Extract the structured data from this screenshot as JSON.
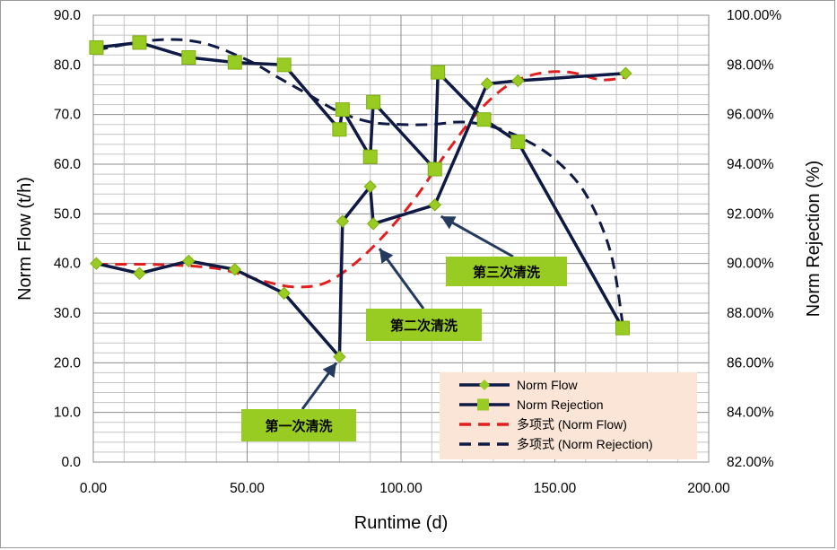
{
  "chart_data": {
    "type": "line",
    "title": "",
    "xlabel": "Runtime (d)",
    "ylabel_left": "Norm Flow (t/h)",
    "ylabel_right": "Norm Rejection (%)",
    "xlim": [
      0,
      200
    ],
    "ylim_left": [
      0,
      90
    ],
    "ylim_right": [
      82,
      100
    ],
    "x_ticks": [
      "0.00",
      "50.00",
      "100.00",
      "150.00",
      "200.00"
    ],
    "y_left_ticks": [
      "0.0",
      "10.0",
      "20.0",
      "30.0",
      "40.0",
      "50.0",
      "60.0",
      "70.0",
      "80.0",
      "90.0"
    ],
    "y_right_ticks": [
      "82.00%",
      "84.00%",
      "86.00%",
      "88.00%",
      "90.00%",
      "92.00%",
      "94.00%",
      "96.00%",
      "98.00%",
      "100.00%"
    ],
    "grid": true,
    "legend_position": "bottom-right",
    "series": [
      {
        "name": "Norm Flow",
        "axis": "left",
        "color": "#0f1a44",
        "marker": "diamond",
        "marker_color": "#99cc22",
        "x": [
          1,
          15,
          31,
          46,
          62,
          80,
          81,
          90,
          91,
          111,
          128,
          138,
          173
        ],
        "y": [
          40.0,
          38.0,
          40.5,
          38.8,
          34.0,
          21.2,
          48.5,
          55.5,
          48.0,
          51.8,
          76.2,
          76.8,
          78.3
        ]
      },
      {
        "name": "Norm Rejection",
        "axis": "right",
        "color": "#0f1a44",
        "marker": "square",
        "marker_color": "#99cc22",
        "x": [
          1,
          15,
          31,
          46,
          62,
          80,
          81,
          90,
          91,
          111,
          112,
          127,
          138,
          172
        ],
        "y": [
          98.7,
          98.9,
          98.3,
          98.1,
          98.0,
          95.4,
          96.2,
          94.3,
          96.5,
          93.8,
          97.7,
          95.8,
          94.9,
          87.4
        ]
      },
      {
        "name": "多项式 (Norm Flow)",
        "axis": "left",
        "color": "#e02020",
        "dash": true,
        "x": [
          1,
          20,
          40,
          55,
          65,
          75,
          85,
          95,
          105,
          115,
          125,
          135,
          145,
          155,
          165,
          173
        ],
        "y": [
          39.8,
          39.8,
          39.0,
          36.5,
          35.3,
          36.0,
          40.0,
          46.0,
          53.5,
          62.5,
          70.5,
          76.0,
          78.3,
          78.5,
          77.0,
          77.5
        ]
      },
      {
        "name": "多项式 (Norm Rejection)",
        "axis": "right",
        "color": "#0f1a44",
        "dash": true,
        "x": [
          1,
          20,
          35,
          50,
          60,
          70,
          80,
          90,
          100,
          110,
          120,
          130,
          140,
          150,
          160,
          168,
          172
        ],
        "y": [
          98.6,
          99.0,
          98.9,
          98.2,
          97.5,
          96.8,
          96.1,
          95.7,
          95.6,
          95.6,
          95.7,
          95.5,
          95.0,
          94.2,
          92.8,
          90.5,
          87.6
        ]
      }
    ],
    "annotations": [
      {
        "label": "第一次清洗",
        "target_x": 79,
        "target_y": 20
      },
      {
        "label": "第二次清洗",
        "target_x": 93,
        "target_y": 43
      },
      {
        "label": "第三次清洗",
        "target_x": 113,
        "target_y": 49.5
      }
    ]
  }
}
